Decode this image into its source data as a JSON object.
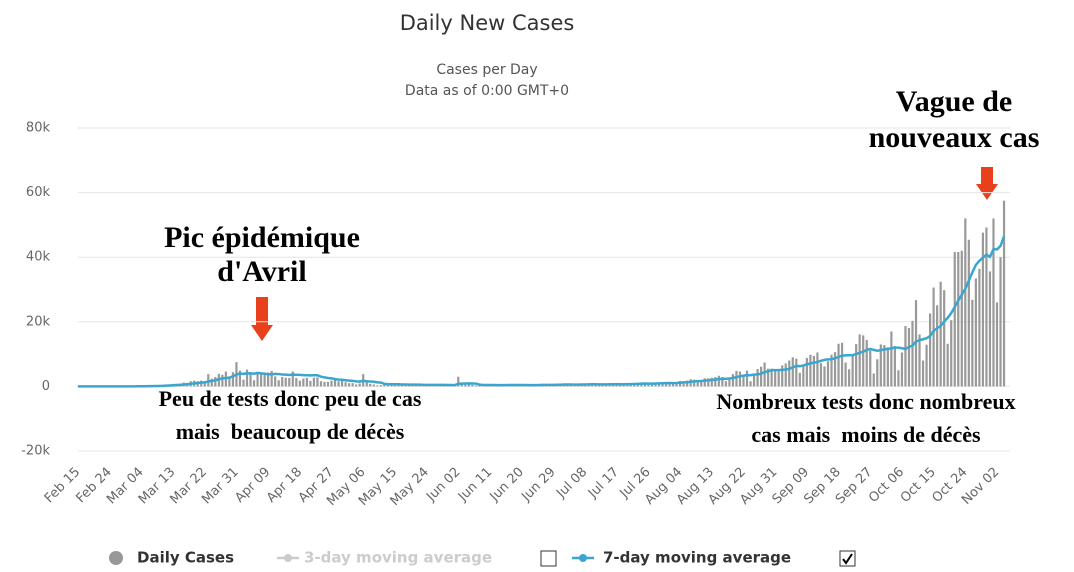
{
  "chart_data": {
    "type": "bar",
    "title": "Daily New Cases",
    "subtitle": [
      "Cases per Day",
      "Data as of 0:00 GMT+0"
    ],
    "categories": [
      "Feb 15",
      null,
      null,
      null,
      null,
      null,
      null,
      null,
      null,
      "Feb 24",
      null,
      null,
      null,
      null,
      null,
      null,
      null,
      null,
      "Mar 04",
      null,
      null,
      null,
      null,
      null,
      null,
      null,
      null,
      "Mar 13",
      null,
      null,
      null,
      null,
      null,
      null,
      null,
      null,
      "Mar 22",
      null,
      null,
      null,
      null,
      null,
      null,
      null,
      null,
      "Mar 31",
      null,
      null,
      null,
      null,
      null,
      null,
      null,
      null,
      "Apr 09",
      null,
      null,
      null,
      null,
      null,
      null,
      null,
      null,
      "Apr 18",
      null,
      null,
      null,
      null,
      null,
      null,
      null,
      null,
      "Apr 27",
      null,
      null,
      null,
      null,
      null,
      null,
      null,
      null,
      "May 06",
      null,
      null,
      null,
      null,
      null,
      null,
      null,
      null,
      "May 15",
      null,
      null,
      null,
      null,
      null,
      null,
      null,
      null,
      "May 24",
      null,
      null,
      null,
      null,
      null,
      null,
      null,
      null,
      "Jun 02",
      null,
      null,
      null,
      null,
      null,
      null,
      null,
      null,
      "Jun 11",
      null,
      null,
      null,
      null,
      null,
      null,
      null,
      null,
      "Jun 20",
      null,
      null,
      null,
      null,
      null,
      null,
      null,
      null,
      "Jun 29",
      null,
      null,
      null,
      null,
      null,
      null,
      null,
      null,
      "Jul 08",
      null,
      null,
      null,
      null,
      null,
      null,
      null,
      null,
      "Jul 17",
      null,
      null,
      null,
      null,
      null,
      null,
      null,
      null,
      "Jul 26",
      null,
      null,
      null,
      null,
      null,
      null,
      null,
      null,
      "Aug 04",
      null,
      null,
      null,
      null,
      null,
      null,
      null,
      null,
      "Aug 13",
      null,
      null,
      null,
      null,
      null,
      null,
      null,
      null,
      "Aug 22",
      null,
      null,
      null,
      null,
      null,
      null,
      null,
      null,
      "Aug 31",
      null,
      null,
      null,
      null,
      null,
      null,
      null,
      null,
      "Sep 09",
      null,
      null,
      null,
      null,
      null,
      null,
      null,
      null,
      "Sep 18",
      null,
      null,
      null,
      null,
      null,
      null,
      null,
      null,
      "Sep 27",
      null,
      null,
      null,
      null,
      null,
      null,
      null,
      null,
      "Oct 06",
      null,
      null,
      null,
      null,
      null,
      null,
      null,
      null,
      "Oct 15",
      null,
      null,
      null,
      null,
      null,
      null,
      null,
      null,
      "Oct 24",
      null,
      null,
      null,
      null,
      null,
      null,
      null,
      null,
      "Nov 02",
      null,
      null
    ],
    "series": [
      {
        "name": "Daily Cases",
        "color": "#999999",
        "kind": "bar",
        "visible": true,
        "values": [
          0,
          0,
          0,
          0,
          0,
          0,
          0,
          0,
          0,
          0,
          2,
          20,
          18,
          38,
          16,
          30,
          30,
          60,
          70,
          100,
          200,
          200,
          100,
          300,
          400,
          500,
          600,
          800,
          800,
          900,
          1200,
          1100,
          1600,
          1800,
          1600,
          1800,
          1600,
          3800,
          2400,
          2900,
          3900,
          3600,
          4600,
          2600,
          4400,
          7500,
          4900,
          2100,
          5200,
          4300,
          1900,
          3900,
          3800,
          3900,
          4300,
          4800,
          3100,
          1900,
          2900,
          2700,
          2600,
          4600,
          2600,
          1800,
          2400,
          2600,
          1700,
          2700,
          2800,
          1600,
          1400,
          1400,
          1800,
          2600,
          1600,
          2000,
          1300,
          1000,
          1000,
          600,
          900,
          3800,
          1400,
          800,
          600,
          300,
          400,
          800,
          900,
          800,
          700,
          600,
          300,
          500,
          500,
          600,
          500,
          600,
          400,
          300,
          400,
          500,
          500,
          400,
          600,
          200,
          300,
          300,
          3000,
          800,
          700,
          600,
          500,
          300,
          400,
          300,
          500,
          500,
          400,
          400,
          300,
          400,
          500,
          400,
          500,
          400,
          500,
          300,
          300,
          400,
          500,
          600,
          600,
          400,
          300,
          500,
          600,
          600,
          700,
          600,
          500,
          400,
          600,
          700,
          800,
          600,
          700,
          600,
          400,
          500,
          600,
          700,
          800,
          700,
          600,
          500,
          700,
          800,
          900,
          1000,
          1100,
          900,
          700,
          800,
          1000,
          1100,
          1300,
          1200,
          1000,
          900,
          1200,
          1700,
          1600,
          1800,
          2200,
          2100,
          1500,
          1400,
          2500,
          2500,
          2700,
          2900,
          3300,
          2900,
          1600,
          2200,
          3800,
          4800,
          4600,
          3600,
          4900,
          1600,
          3300,
          5400,
          6100,
          7400,
          5500,
          5500,
          5000,
          4900,
          6500,
          7100,
          8000,
          9000,
          8600,
          4200,
          6500,
          8800,
          9800,
          9400,
          10500,
          7200,
          6200,
          7800,
          9800,
          10600,
          13200,
          13500,
          7400,
          5300,
          10000,
          13100,
          16100,
          15800,
          14400,
          11100,
          4000,
          8400,
          13000,
          12800,
          12100,
          17000,
          12500,
          5000,
          10500,
          18700,
          18100,
          20300,
          26700,
          16100,
          8000,
          12900,
          22600,
          30600,
          25100,
          32400,
          29800,
          13200,
          20500,
          41600,
          41600,
          42000,
          52000,
          45400,
          26800,
          33400,
          36400,
          47600,
          49200,
          35600,
          52000,
          26000,
          40000,
          57500
        ]
      },
      {
        "name": "3-day moving average",
        "color": "#cccccc",
        "kind": "line",
        "visible": false
      },
      {
        "name": "7-day moving average",
        "color": "#3aa6cf",
        "kind": "line",
        "visible": true,
        "values": [
          0,
          0,
          0,
          0,
          0,
          0,
          0,
          0,
          0,
          0,
          0,
          3,
          6,
          11,
          13,
          18,
          22,
          30,
          37,
          50,
          70,
          100,
          110,
          140,
          180,
          230,
          280,
          350,
          410,
          480,
          580,
          660,
          800,
          930,
          1040,
          1160,
          1260,
          1530,
          1700,
          1880,
          2210,
          2460,
          2600,
          2710,
          3110,
          3670,
          4000,
          3830,
          4070,
          4040,
          3930,
          4190,
          4050,
          3910,
          3790,
          3710,
          3870,
          3820,
          3680,
          3650,
          3530,
          3630,
          3590,
          3570,
          3500,
          3460,
          3420,
          3440,
          3450,
          3000,
          2800,
          2600,
          2500,
          2250,
          2100,
          2050,
          1900,
          1800,
          1700,
          1550,
          1500,
          1750,
          1600,
          1500,
          1450,
          1250,
          1200,
          800,
          700,
          650,
          650,
          650,
          600,
          600,
          550,
          550,
          550,
          550,
          500,
          480,
          470,
          460,
          460,
          460,
          470,
          430,
          420,
          410,
          800,
          870,
          910,
          930,
          900,
          880,
          550,
          480,
          450,
          430,
          430,
          410,
          390,
          400,
          420,
          420,
          430,
          430,
          440,
          430,
          410,
          400,
          410,
          430,
          460,
          480,
          470,
          490,
          500,
          530,
          570,
          590,
          580,
          540,
          560,
          580,
          600,
          630,
          650,
          650,
          630,
          620,
          640,
          650,
          670,
          690,
          680,
          670,
          690,
          710,
          750,
          800,
          860,
          880,
          870,
          870,
          890,
          920,
          960,
          1030,
          1040,
          1020,
          1050,
          1140,
          1230,
          1300,
          1390,
          1550,
          1640,
          1660,
          1780,
          1880,
          1990,
          2100,
          2260,
          2340,
          2350,
          2450,
          2610,
          2870,
          3130,
          3330,
          3490,
          3470,
          3640,
          3720,
          3930,
          4430,
          4640,
          5040,
          5050,
          5030,
          5100,
          5220,
          5410,
          5910,
          6360,
          6260,
          6490,
          6820,
          7130,
          7340,
          7560,
          7930,
          8210,
          8360,
          8420,
          8690,
          9100,
          9530,
          9620,
          9640,
          9670,
          10000,
          10410,
          10730,
          11300,
          11600,
          11300,
          11060,
          11200,
          11500,
          11600,
          11800,
          12000,
          12000,
          11800,
          11600,
          12200,
          12600,
          13900,
          14300,
          14600,
          14900,
          15600,
          17200,
          18000,
          18700,
          20100,
          21200,
          22700,
          24600,
          26600,
          28400,
          30200,
          32700,
          35300,
          37600,
          38900,
          39800,
          40800,
          40100,
          42500,
          42400,
          43500,
          46500
        ]
      }
    ],
    "ylim": [
      -20000,
      80000
    ],
    "yticks": [
      {
        "value": -20000,
        "label": "-20k"
      },
      0,
      {
        "value": 20000,
        "label": "20k"
      },
      {
        "value": 40000,
        "label": "40k"
      },
      {
        "value": 60000,
        "label": "60k"
      },
      {
        "value": 80000,
        "label": "80k"
      }
    ],
    "grid": true,
    "annotations": [
      {
        "lines": [
          "Pic épidémique",
          "d'Avril"
        ]
      },
      {
        "lines": [
          "Vague de",
          "nouveaux cas"
        ]
      },
      {
        "lines": [
          "Peu de tests donc peu de cas",
          "mais  beaucoup de décès"
        ]
      },
      {
        "lines": [
          "Nombreux tests donc nombreux",
          "cas mais  moins de décès"
        ]
      }
    ]
  }
}
